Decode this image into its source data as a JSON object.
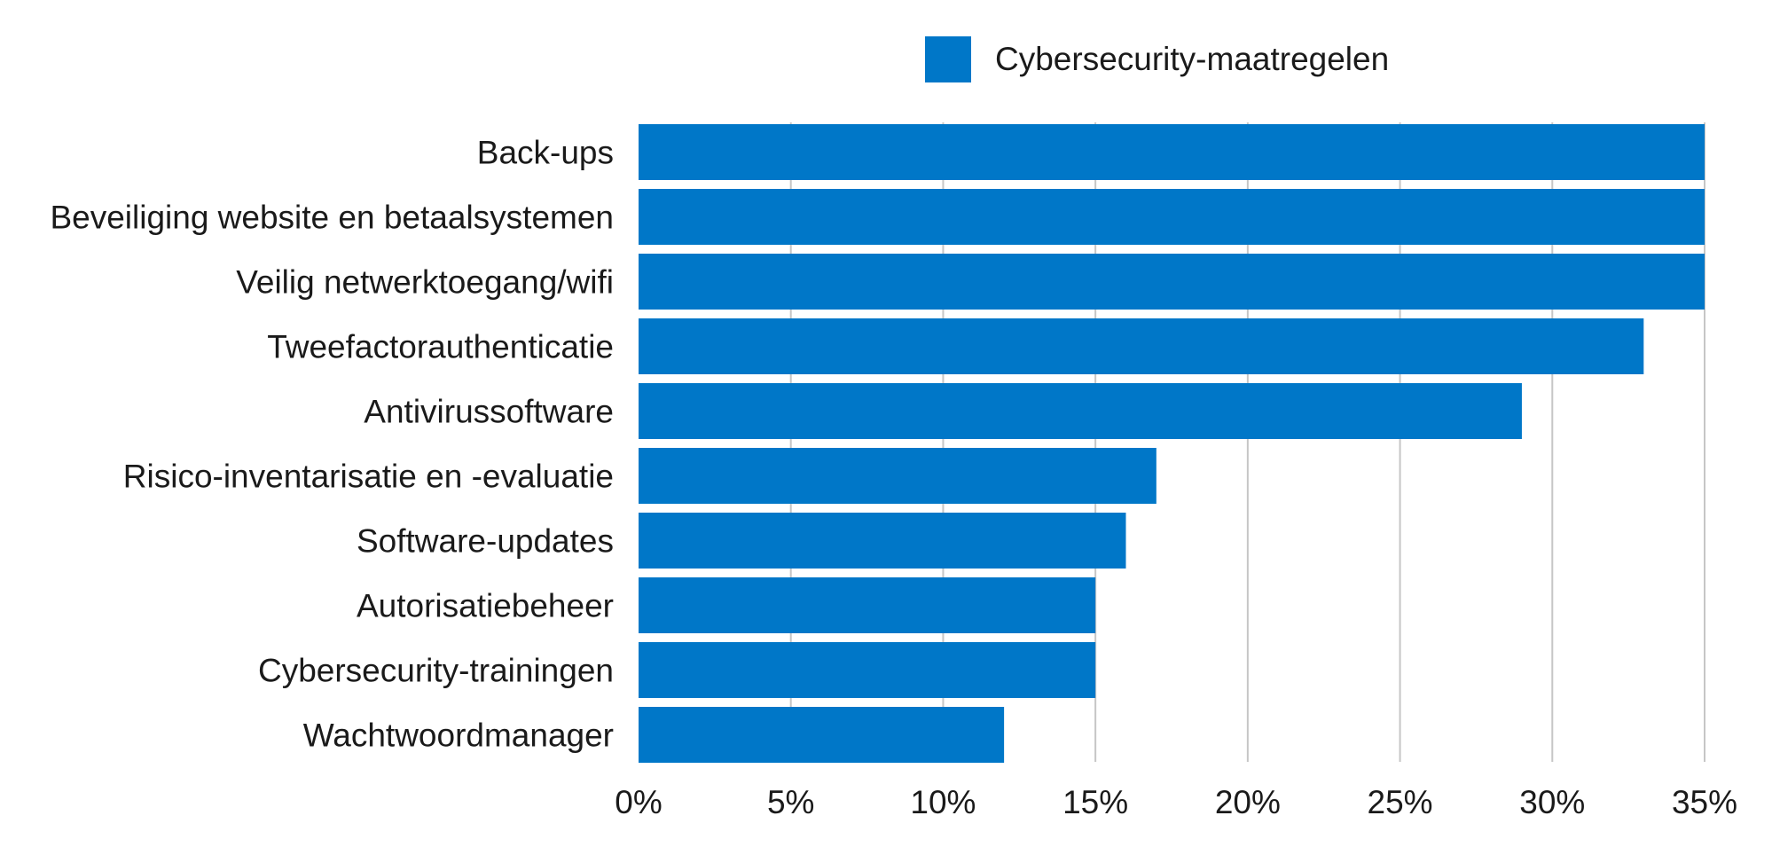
{
  "chart_data": {
    "type": "bar",
    "orientation": "horizontal",
    "title": "",
    "xlabel": "",
    "ylabel": "",
    "categories": [
      "Back-ups",
      "Beveiliging website en betaalsystemen",
      "Veilig netwerktoegang/wifi",
      "Tweefactorauthenticatie",
      "Antivirussoftware",
      "Risico-inventarisatie en -evaluatie",
      "Software-updates",
      "Autorisatiebeheer",
      "Cybersecurity-trainingen",
      "Wachtwoordmanager"
    ],
    "series": [
      {
        "name": "Cybersecurity-maatregelen",
        "color": "#0077c8",
        "values": [
          35,
          35,
          35,
          33,
          29,
          17,
          16,
          15,
          15,
          12
        ]
      }
    ],
    "xlim": [
      0,
      35
    ],
    "x_ticks": [
      0,
      5,
      10,
      15,
      20,
      25,
      30,
      35
    ],
    "x_tick_labels": [
      "0%",
      "5%",
      "10%",
      "15%",
      "20%",
      "25%",
      "30%",
      "35%"
    ],
    "grid": true,
    "legend_position": "top"
  }
}
